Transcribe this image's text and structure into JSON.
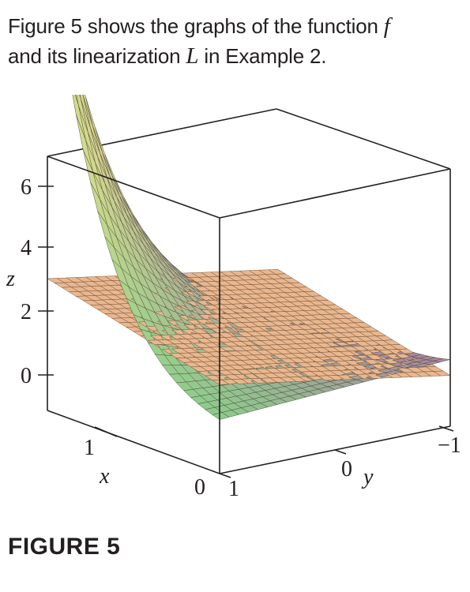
{
  "caption": {
    "part1": "Figure 5 shows the graphs of the function ",
    "f_symbol": "f",
    "part2": "and its linearization ",
    "L_symbol": "L",
    "part3": " in Example 2."
  },
  "figure_label": "FIGURE 5",
  "chart_data": {
    "type": "surface",
    "surfaces": [
      {
        "name": "f",
        "color": "green-to-purple"
      },
      {
        "name": "L",
        "color": "tan"
      }
    ],
    "axes": {
      "x": {
        "label": "x",
        "ticks": [
          "0",
          "1"
        ],
        "range": [
          0,
          1.5
        ]
      },
      "y": {
        "label": "y",
        "ticks": [
          "1",
          "0",
          "−1"
        ],
        "range": [
          -1,
          1
        ]
      },
      "z": {
        "label": "z",
        "ticks": [
          "0",
          "2",
          "4",
          "6"
        ],
        "range": [
          -1.2,
          6.8
        ]
      }
    },
    "grid": false
  }
}
